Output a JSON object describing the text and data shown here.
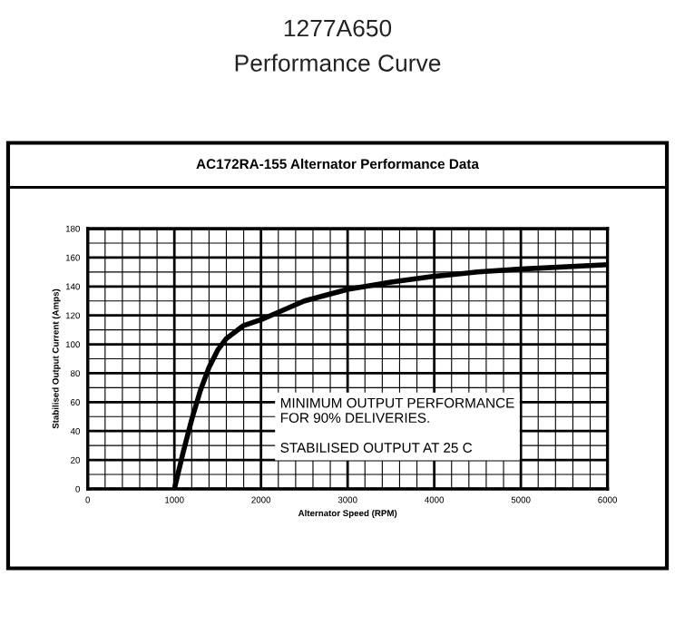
{
  "chart_data": {
    "type": "line",
    "title": "1277A650",
    "subtitle": "Performance Curve",
    "annotations": [
      "AC172RA-155 Alternator Performance Data",
      "MINIMUM OUTPUT PERFORMANCE\nFOR 90% DELIVERIES.\n\nSTABILISED OUTPUT AT 25 C"
    ],
    "xlabel": "Alternator Speed (RPM)",
    "ylabel": "Stabilised Output Current (Amps)",
    "x": [
      1000,
      1100,
      1200,
      1300,
      1400,
      1500,
      1600,
      1800,
      2000,
      2500,
      3000,
      3500,
      4000,
      4500,
      5000,
      6000
    ],
    "series": [
      {
        "color": "#000000",
        "values": [
          0,
          25,
          48,
          68,
          84,
          96,
          104,
          113,
          117,
          130,
          138,
          143,
          147,
          150,
          152,
          155
        ]
      }
    ],
    "xlim": [
      0,
      6000
    ],
    "xticks": [
      0,
      1000,
      2000,
      3000,
      4000,
      5000,
      6000
    ],
    "ylim": [
      0,
      180
    ],
    "yticks": [
      0,
      20,
      40,
      60,
      80,
      100,
      120,
      140,
      160,
      180
    ],
    "grid": true,
    "marker": "none",
    "line_style": "solid",
    "legend": false
  }
}
